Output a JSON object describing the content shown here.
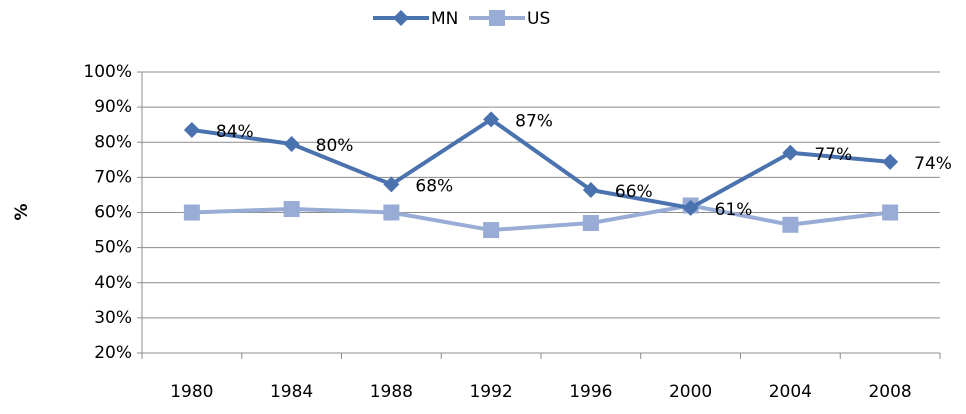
{
  "chart_data": {
    "type": "line",
    "y_label": "%",
    "categories": [
      "1980",
      "1984",
      "1988",
      "1992",
      "1996",
      "2000",
      "2004",
      "2008"
    ],
    "series": [
      {
        "name": "MN",
        "color": "#4a72ae",
        "marker": "diamond",
        "values": [
          83.5,
          79.5,
          68,
          86.5,
          66.4,
          61.3,
          77,
          74.4
        ],
        "value_labels": [
          "84%",
          "80%",
          "68%",
          "87%",
          "66%",
          "61%",
          "77%",
          "74%"
        ]
      },
      {
        "name": "US",
        "color": "#98acd6",
        "marker": "square",
        "values": [
          60,
          61,
          60,
          55,
          57,
          62,
          56.5,
          60
        ]
      }
    ],
    "ylim": [
      20,
      100
    ],
    "yticks": [
      {
        "value": 20,
        "label": "20%"
      },
      {
        "value": 30,
        "label": "30%"
      },
      {
        "value": 40,
        "label": "40%"
      },
      {
        "value": 50,
        "label": "50%"
      },
      {
        "value": 60,
        "label": "60%"
      },
      {
        "value": 70,
        "label": "70%"
      },
      {
        "value": 80,
        "label": "80%"
      },
      {
        "value": 90,
        "label": "90%"
      },
      {
        "value": 100,
        "label": "100%"
      }
    ],
    "grid": true,
    "legend": "top"
  }
}
